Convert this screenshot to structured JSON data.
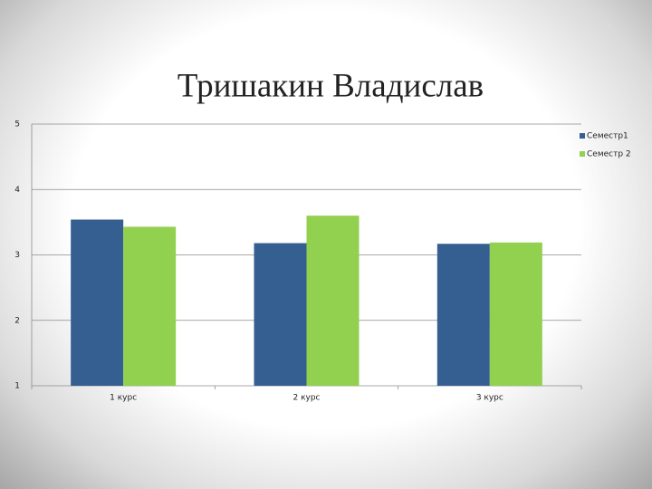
{
  "chart_data": {
    "type": "bar",
    "title": "Тришакин Владислав",
    "categories": [
      "1 курс",
      "2 курс",
      "3 курс"
    ],
    "series": [
      {
        "name": "Семестр1",
        "color": "#355f91",
        "values": [
          3.54,
          3.18,
          3.17
        ]
      },
      {
        "name": "Семестр 2",
        "color": "#92d050",
        "values": [
          3.43,
          3.6,
          3.19
        ]
      }
    ],
    "ylim": [
      1,
      5
    ],
    "yticks": [
      1,
      2,
      3,
      4,
      5
    ],
    "grid": true,
    "legend": "right"
  }
}
